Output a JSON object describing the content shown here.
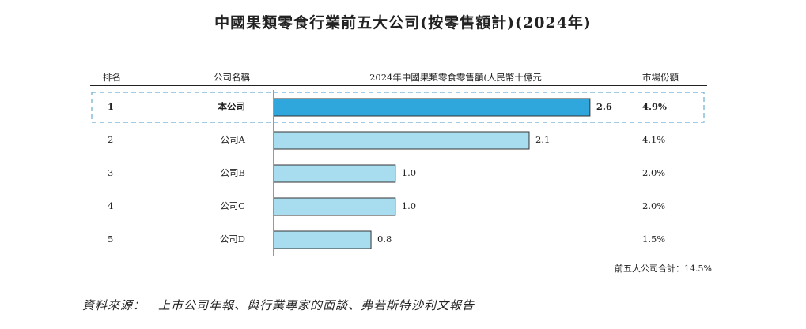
{
  "title": "中國果類零食行業前五大公司(按零售額計)(2024年)",
  "headers": {
    "rank": "排名",
    "company": "公司名稱",
    "sales": "2024年中國果類零食零售額(人民幣十億元",
    "share": "市場份額"
  },
  "chart_data": {
    "type": "bar",
    "orientation": "horizontal",
    "title": "中國果類零食行業前五大公司(按零售額計)(2024年)",
    "xlabel": "2024年中國果類零食零售額(人民幣十億元",
    "ylabel": "",
    "xlim": [
      0,
      3.0
    ],
    "ranks": [
      "1",
      "2",
      "3",
      "4",
      "5"
    ],
    "categories": [
      "本公司",
      "公司A",
      "公司B",
      "公司C",
      "公司D"
    ],
    "values": [
      2.6,
      2.1,
      1.0,
      1.0,
      0.8
    ],
    "value_labels": [
      "2.6",
      "2.1",
      "1.0",
      "1.0",
      "0.8"
    ],
    "shares": [
      "4.9%",
      "4.1%",
      "2.0%",
      "2.0%",
      "1.5%"
    ],
    "highlight_index": 0,
    "colors": {
      "highlight": "#2fa7dc",
      "normal": "#a8dcef",
      "stroke": "#333333",
      "dash": "#6aaed0"
    },
    "total_label": "前五大公司合計：14.5%"
  },
  "source": "資料來源：　上市公司年報、與行業專家的面談、弗若斯特沙利文報告"
}
